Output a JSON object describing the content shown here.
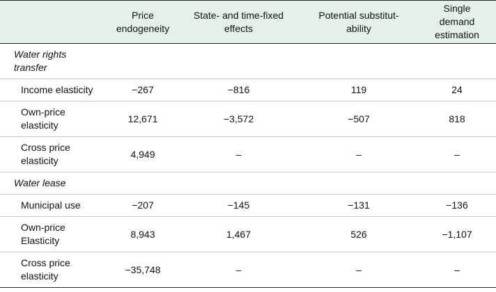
{
  "table": {
    "columns": [
      "Price\nendogeneity",
      "State- and time-fixed\neffects",
      "Potential substitut-\nability",
      "Single\ndemand\nestimation"
    ],
    "sections": [
      {
        "title": "Water rights\ntransfer",
        "rows": [
          {
            "label": "Income elasticity",
            "values": [
              "−267",
              "−816",
              "119",
              "24"
            ]
          },
          {
            "label": "Own-price\nelasticity",
            "values": [
              "12,671",
              "−3,572",
              "−507",
              "818"
            ]
          },
          {
            "label": "Cross price\nelasticity",
            "values": [
              "4,949",
              "–",
              "–",
              "–"
            ]
          }
        ]
      },
      {
        "title": "Water lease",
        "rows": [
          {
            "label": "Municipal use",
            "values": [
              "−207",
              "−145",
              "−131",
              "−136"
            ]
          },
          {
            "label": "Own-price\nElasticity",
            "values": [
              "8,943",
              "1,467",
              "526",
              "−1,107"
            ]
          },
          {
            "label": "Cross price\nelasticity",
            "values": [
              "−35,748",
              "–",
              "–",
              "–"
            ]
          }
        ]
      }
    ]
  }
}
